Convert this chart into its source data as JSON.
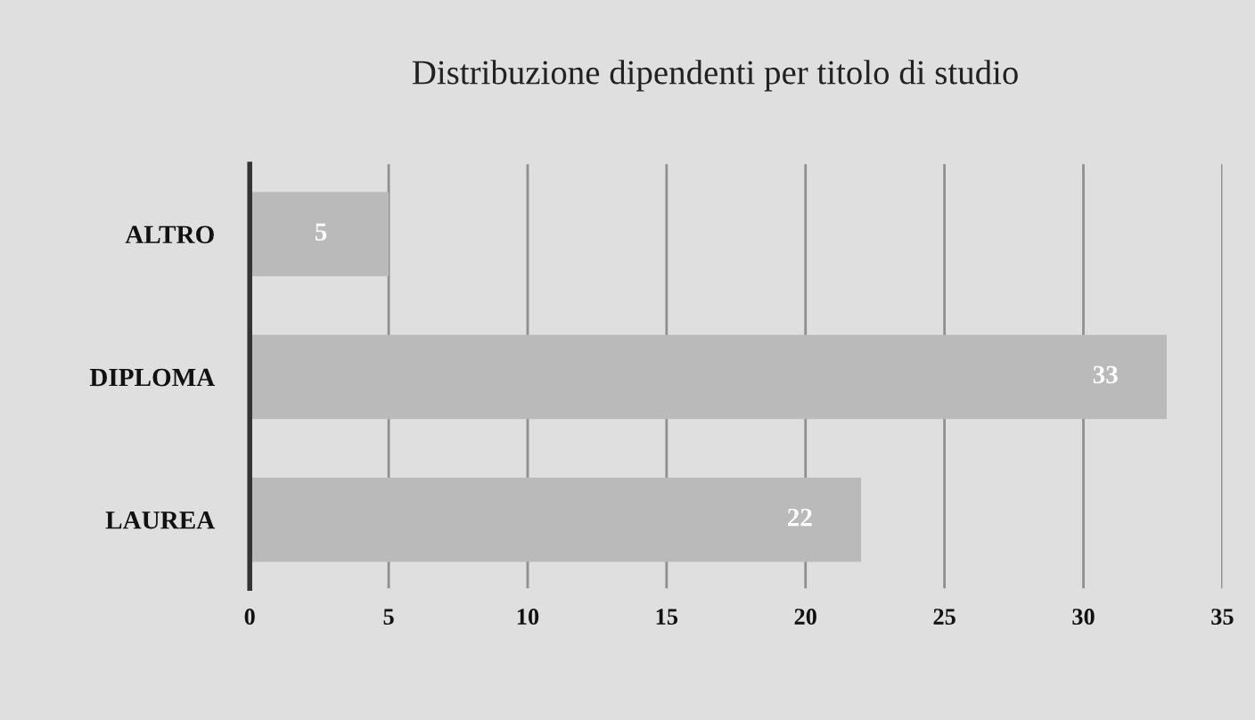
{
  "chart_data": {
    "type": "bar",
    "orientation": "horizontal",
    "title": "Distribuzione dipendenti per titolo di studio",
    "categories": [
      "ALTRO",
      "DIPLOMA",
      "LAUREA"
    ],
    "values": [
      5,
      33,
      22
    ],
    "color": "#bababa",
    "xlim": [
      0,
      35
    ],
    "xticks": [
      0,
      5,
      10,
      15,
      20,
      25,
      30,
      35
    ],
    "grid": "x",
    "data_labels": true
  }
}
